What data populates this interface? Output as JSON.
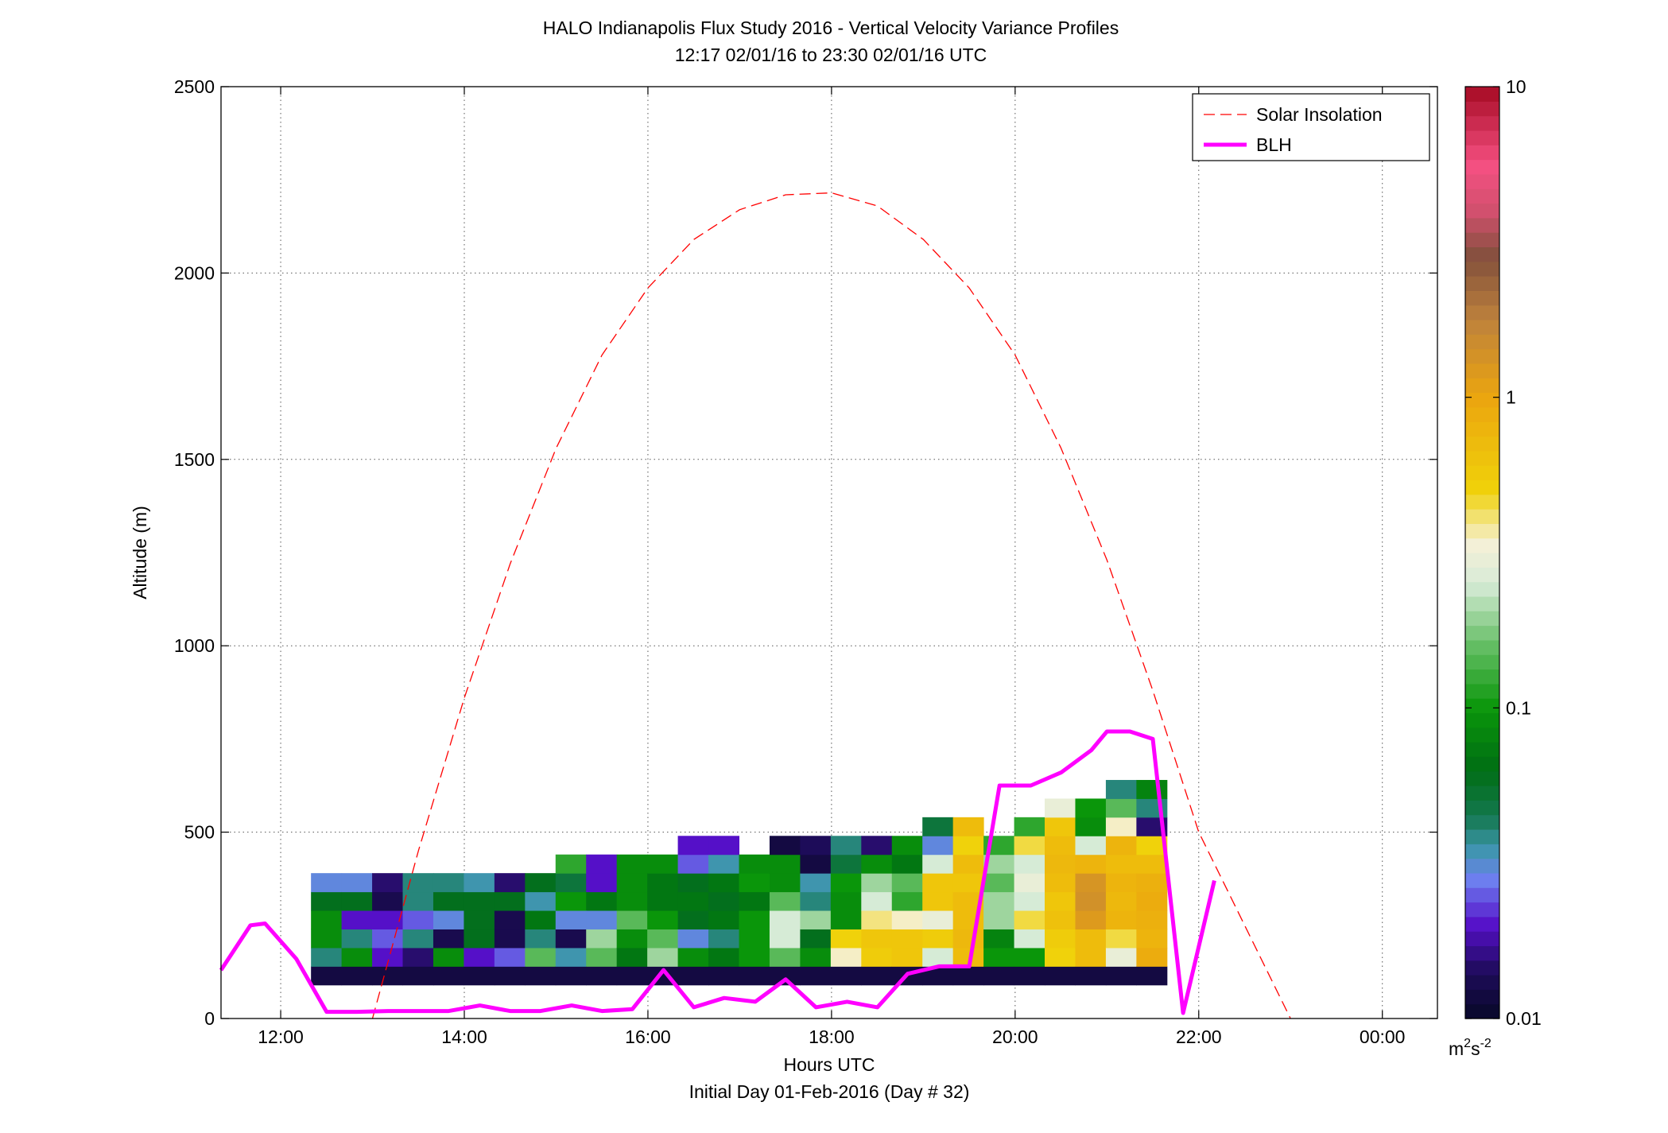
{
  "chart_data": {
    "type": "heatmap",
    "title": "HALO Indianapolis Flux Study 2016 - Vertical Velocity Variance Profiles",
    "subtitle": "12:17 02/01/16 to 23:30 02/01/16  UTC",
    "xlabel": "Hours UTC",
    "xlabel2": "Initial Day 01-Feb-2016 (Day # 32)",
    "ylabel": "Altitude (m)",
    "xlim": [
      11.35,
      24.6
    ],
    "ylim": [
      0,
      2500
    ],
    "x_ticks": [
      12,
      14,
      16,
      18,
      20,
      22,
      24
    ],
    "x_tick_labels": [
      "12:00",
      "14:00",
      "16:00",
      "18:00",
      "20:00",
      "22:00",
      "00:00"
    ],
    "y_ticks": [
      0,
      500,
      1000,
      1500,
      2000,
      2500
    ],
    "y_tick_labels": [
      "0",
      "500",
      "1000",
      "1500",
      "2000",
      "2500"
    ],
    "grid": true,
    "legend_position": "top-right",
    "legend": [
      "Solar Insolation",
      "BLH"
    ],
    "colorbar": {
      "scale": "log",
      "range": [
        0.01,
        10
      ],
      "ticks": [
        0.01,
        0.1,
        1,
        10
      ],
      "tick_labels": [
        "0.01",
        "0.1",
        "1",
        "10"
      ],
      "unit_base": "m",
      "unit_sup1": "2",
      "unit_mid": "s",
      "unit_sup2": "-2"
    },
    "heatmap": {
      "x_start": 12.33,
      "dx": 0.333,
      "y_start": 90,
      "dy": 50,
      "unit": "m^2 s^-2",
      "columns": [
        [
          0.012,
          0.04,
          0.09,
          0.09,
          0.06,
          0.03
        ],
        [
          0.012,
          0.09,
          0.04,
          0.02,
          0.06,
          0.03
        ],
        [
          0.012,
          0.02,
          0.025,
          0.02,
          0.013,
          0.015
        ],
        [
          0.012,
          0.015,
          0.04,
          0.025,
          0.04,
          0.04
        ],
        [
          0.012,
          0.09,
          0.013,
          0.03,
          0.06,
          0.04
        ],
        [
          0.012,
          0.02,
          0.06,
          0.06,
          0.06,
          0.035
        ],
        [
          0.012,
          0.025,
          0.013,
          0.013,
          0.06,
          0.015
        ],
        [
          0.012,
          0.15,
          0.04,
          0.07,
          0.035,
          0.06
        ],
        [
          0.012,
          0.035,
          0.013,
          0.03,
          0.1,
          0.05,
          0.12
        ],
        [
          0.012,
          0.15,
          0.2,
          0.03,
          0.07,
          0.02,
          0.02
        ],
        [
          0.012,
          0.07,
          0.09,
          0.15,
          0.09,
          0.09,
          0.09
        ],
        [
          0.012,
          0.2,
          0.15,
          0.1,
          0.07,
          0.07,
          0.09
        ],
        [
          0.012,
          0.09,
          0.03,
          0.06,
          0.07,
          0.06,
          0.025,
          0.02
        ],
        [
          0.012,
          0.07,
          0.04,
          0.07,
          0.06,
          0.07,
          0.035,
          0.02
        ],
        [
          0.012,
          0.1,
          0.1,
          0.1,
          0.07,
          0.1,
          0.09
        ],
        [
          0.012,
          0.15,
          0.25,
          0.25,
          0.15,
          0.09,
          0.09,
          0.012
        ],
        [
          0.012,
          0.09,
          0.06,
          0.2,
          0.04,
          0.035,
          0.012,
          0.014
        ],
        [
          0.012,
          0.35,
          0.5,
          0.09,
          0.09,
          0.1,
          0.05,
          0.04
        ],
        [
          0.012,
          0.55,
          0.6,
          0.4,
          0.25,
          0.2,
          0.09,
          0.015
        ],
        [
          0.012,
          0.6,
          0.6,
          0.35,
          0.12,
          0.15,
          0.07,
          0.09
        ],
        [
          0.012,
          0.25,
          0.55,
          0.3,
          0.6,
          0.6,
          0.25,
          0.03,
          0.05
        ],
        [
          0.012,
          0.7,
          0.75,
          0.7,
          0.7,
          0.6,
          0.7,
          0.5,
          0.7
        ],
        [
          0.012,
          0.1,
          0.08,
          0.2,
          0.2,
          0.15,
          0.2,
          0.12
        ],
        [
          0.012,
          0.1,
          0.25,
          0.45,
          0.25,
          0.3,
          0.25,
          0.45,
          0.12
        ],
        [
          0.012,
          0.5,
          0.55,
          0.65,
          0.6,
          0.7,
          0.75,
          0.7,
          0.6,
          0.3
        ],
        [
          0.012,
          0.7,
          0.7,
          1.2,
          1.4,
          1.3,
          0.8,
          0.25,
          0.09,
          0.1
        ],
        [
          0.012,
          0.3,
          0.45,
          0.8,
          0.75,
          0.8,
          0.7,
          0.8,
          0.35,
          0.15,
          0.04
        ],
        [
          0.012,
          0.9,
          0.8,
          0.85,
          0.9,
          0.85,
          0.7,
          0.5,
          0.015,
          0.04,
          0.08
        ]
      ]
    },
    "series": [
      {
        "name": "Solar Insolation",
        "color": "#ff0000",
        "style": "dashed",
        "x": [
          13.0,
          13.5,
          14.0,
          14.5,
          15.0,
          15.5,
          16.0,
          16.5,
          17.0,
          17.5,
          18.0,
          18.5,
          19.0,
          19.5,
          20.0,
          20.5,
          21.0,
          21.5,
          22.0,
          22.5,
          23.0
        ],
        "values": [
          0,
          450,
          860,
          1220,
          1530,
          1780,
          1960,
          2090,
          2170,
          2210,
          2215,
          2180,
          2090,
          1960,
          1780,
          1530,
          1230,
          880,
          500,
          250,
          0
        ]
      },
      {
        "name": "BLH",
        "color": "#ff00ff",
        "style": "solid",
        "x": [
          11.35,
          11.67,
          11.83,
          12.17,
          12.5,
          12.83,
          13.17,
          13.5,
          13.83,
          14.17,
          14.5,
          14.83,
          15.17,
          15.5,
          15.83,
          16.17,
          16.5,
          16.83,
          17.17,
          17.5,
          17.83,
          18.17,
          18.5,
          18.83,
          19.17,
          19.5,
          19.83,
          20.17,
          20.5,
          20.83,
          21.0,
          21.25,
          21.5,
          21.83,
          22.17
        ],
        "values": [
          130,
          250,
          255,
          160,
          18,
          18,
          20,
          20,
          20,
          35,
          20,
          20,
          35,
          20,
          25,
          130,
          30,
          55,
          45,
          105,
          30,
          45,
          30,
          120,
          140,
          140,
          625,
          625,
          660,
          720,
          770,
          770,
          750,
          15,
          370
        ]
      }
    ]
  }
}
